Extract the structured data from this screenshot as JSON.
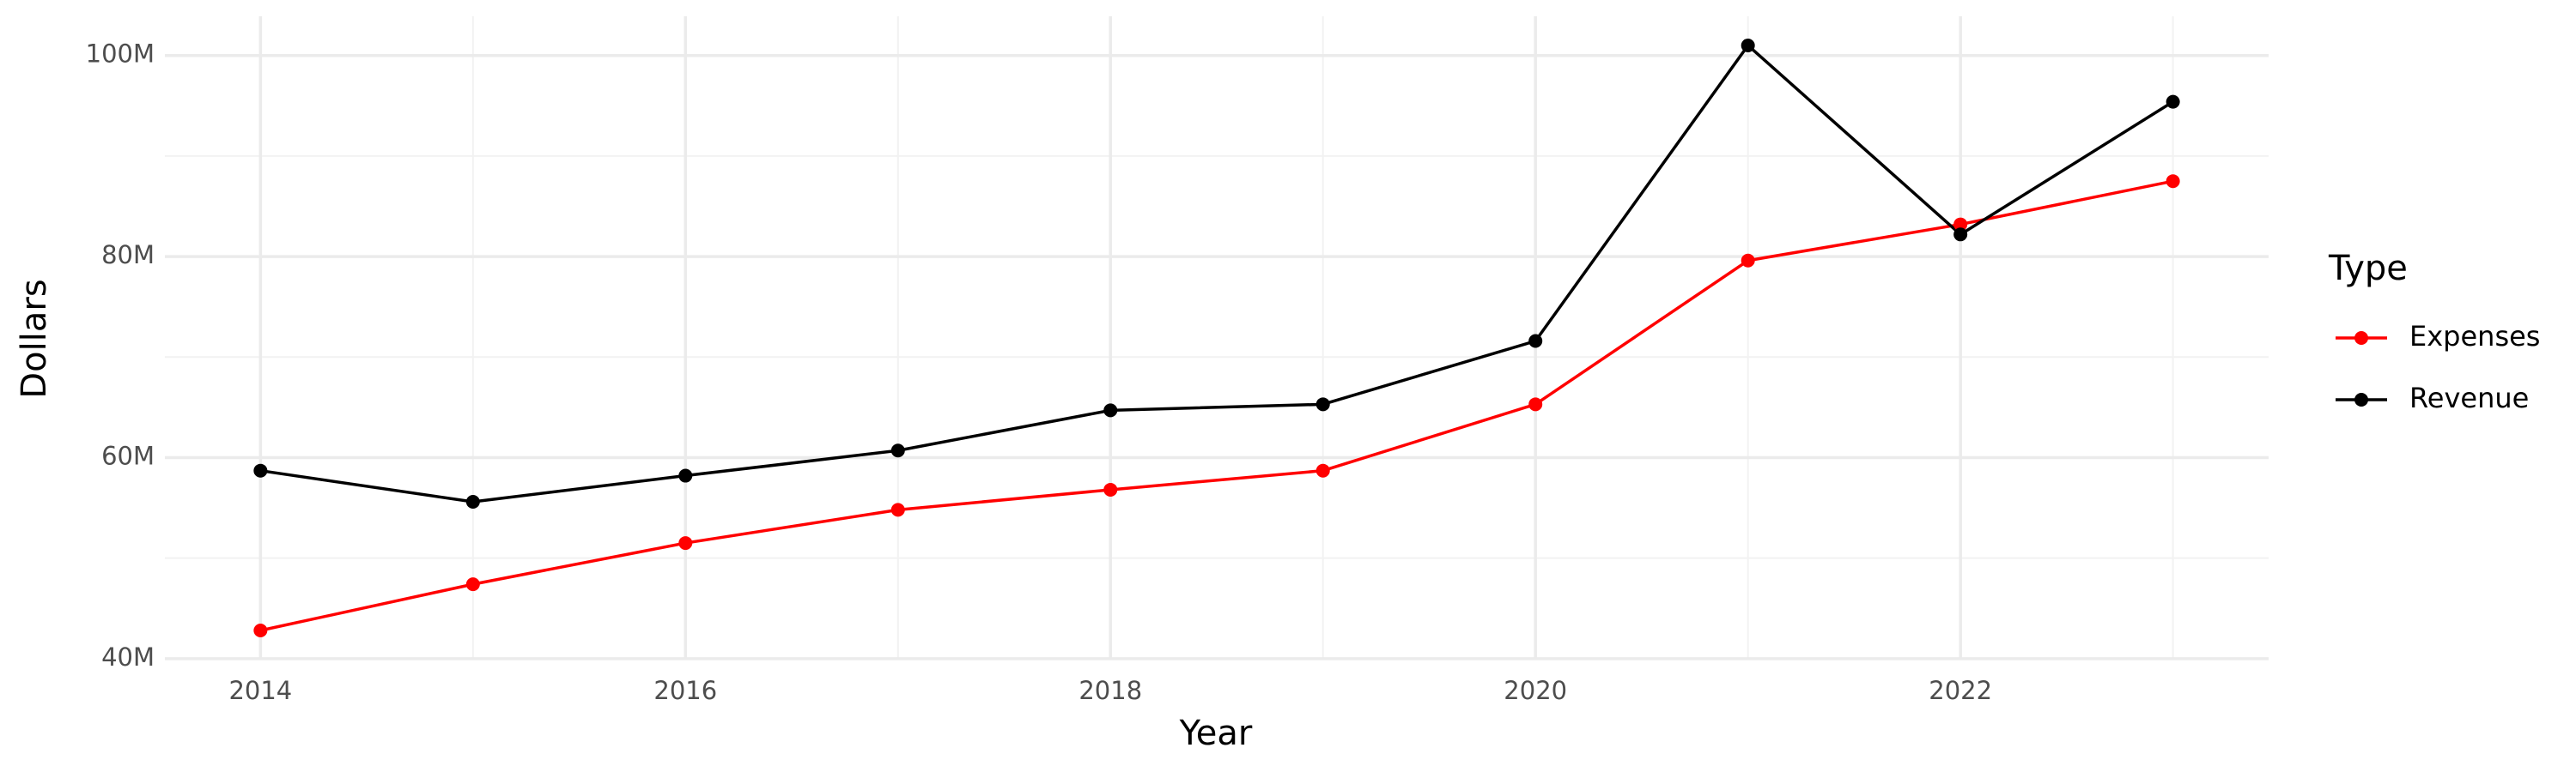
{
  "chart_data": {
    "type": "line",
    "x_label": "Year",
    "y_label": "Dollars",
    "legend_title": "Type",
    "x": [
      2014,
      2015,
      2016,
      2017,
      2018,
      2019,
      2020,
      2021,
      2022,
      2023
    ],
    "series": [
      {
        "name": "Expenses",
        "color": "#ff0000",
        "values": [
          42800000,
          47400000,
          51500000,
          54800000,
          56800000,
          58700000,
          65300000,
          79600000,
          83200000,
          87500000
        ]
      },
      {
        "name": "Revenue",
        "color": "#000000",
        "values": [
          58700000,
          55600000,
          58200000,
          60700000,
          64700000,
          65300000,
          71600000,
          101000000,
          82200000,
          95400000
        ]
      }
    ],
    "xlim": [
      2013.55,
      2023.45
    ],
    "xticks": [
      2014,
      2016,
      2018,
      2020,
      2022
    ],
    "ylim": [
      39900000,
      103900000
    ],
    "yticks": [
      {
        "value": 40000000,
        "label": "40M"
      },
      {
        "value": 60000000,
        "label": "60M"
      },
      {
        "value": 80000000,
        "label": "80M"
      },
      {
        "value": 100000000,
        "label": "100M"
      }
    ],
    "grid": true,
    "legend": "right"
  }
}
